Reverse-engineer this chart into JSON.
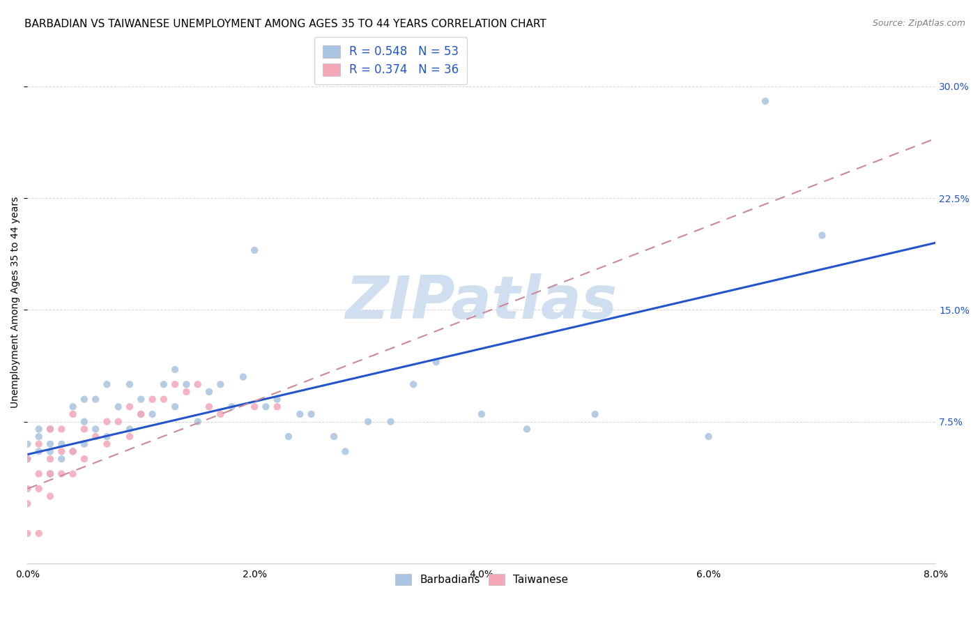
{
  "title": "BARBADIAN VS TAIWANESE UNEMPLOYMENT AMONG AGES 35 TO 44 YEARS CORRELATION CHART",
  "source": "Source: ZipAtlas.com",
  "ylabel_label": "Unemployment Among Ages 35 to 44 years",
  "legend_entries": [
    {
      "label": "R = 0.548   N = 53",
      "color": "#a8c4e0"
    },
    {
      "label": "R = 0.374   N = 36",
      "color": "#f4a7b9"
    }
  ],
  "legend_labels": [
    "Barbadians",
    "Taiwanese"
  ],
  "watermark": "ZIPatlas",
  "xlim": [
    0.0,
    0.08
  ],
  "ylim": [
    -0.02,
    0.33
  ],
  "barbadian_x": [
    0.0,
    0.0,
    0.001,
    0.001,
    0.001,
    0.002,
    0.002,
    0.002,
    0.002,
    0.003,
    0.003,
    0.004,
    0.004,
    0.005,
    0.005,
    0.005,
    0.006,
    0.006,
    0.007,
    0.007,
    0.008,
    0.009,
    0.009,
    0.01,
    0.01,
    0.011,
    0.012,
    0.013,
    0.013,
    0.014,
    0.015,
    0.016,
    0.017,
    0.018,
    0.019,
    0.02,
    0.021,
    0.022,
    0.023,
    0.024,
    0.025,
    0.027,
    0.028,
    0.03,
    0.032,
    0.034,
    0.036,
    0.04,
    0.044,
    0.05,
    0.06,
    0.065,
    0.07
  ],
  "barbadian_y": [
    0.05,
    0.06,
    0.055,
    0.065,
    0.07,
    0.04,
    0.055,
    0.06,
    0.07,
    0.05,
    0.06,
    0.055,
    0.085,
    0.06,
    0.075,
    0.09,
    0.07,
    0.09,
    0.065,
    0.1,
    0.085,
    0.07,
    0.1,
    0.08,
    0.09,
    0.08,
    0.1,
    0.085,
    0.11,
    0.1,
    0.075,
    0.095,
    0.1,
    0.085,
    0.105,
    0.19,
    0.085,
    0.09,
    0.065,
    0.08,
    0.08,
    0.065,
    0.055,
    0.075,
    0.075,
    0.1,
    0.115,
    0.08,
    0.07,
    0.08,
    0.065,
    0.29,
    0.2
  ],
  "taiwanese_x": [
    0.0,
    0.0,
    0.0,
    0.0,
    0.001,
    0.001,
    0.001,
    0.001,
    0.002,
    0.002,
    0.002,
    0.002,
    0.003,
    0.003,
    0.003,
    0.004,
    0.004,
    0.004,
    0.005,
    0.005,
    0.006,
    0.007,
    0.007,
    0.008,
    0.009,
    0.009,
    0.01,
    0.011,
    0.012,
    0.013,
    0.014,
    0.015,
    0.016,
    0.017,
    0.02,
    0.022
  ],
  "taiwanese_y": [
    0.0,
    0.02,
    0.03,
    0.05,
    0.0,
    0.03,
    0.04,
    0.06,
    0.025,
    0.04,
    0.05,
    0.07,
    0.04,
    0.055,
    0.07,
    0.04,
    0.055,
    0.08,
    0.05,
    0.07,
    0.065,
    0.06,
    0.075,
    0.075,
    0.065,
    0.085,
    0.08,
    0.09,
    0.09,
    0.1,
    0.095,
    0.1,
    0.085,
    0.08,
    0.085,
    0.085
  ],
  "blue_line_x": [
    0.0,
    0.08
  ],
  "blue_line_y": [
    0.053,
    0.195
  ],
  "pink_line_x": [
    0.0,
    0.08
  ],
  "pink_line_y": [
    0.03,
    0.265
  ],
  "blue_line_color": "#2255cc",
  "pink_line_color": "#cc8899",
  "blue_dot_color": "#a8c4e0",
  "pink_dot_color": "#f4a7b9",
  "background_color": "#ffffff",
  "grid_color": "#cccccc",
  "title_fontsize": 11,
  "axis_label_fontsize": 10,
  "tick_fontsize": 10,
  "watermark_color": "#d0dff0",
  "watermark_fontsize": 62
}
